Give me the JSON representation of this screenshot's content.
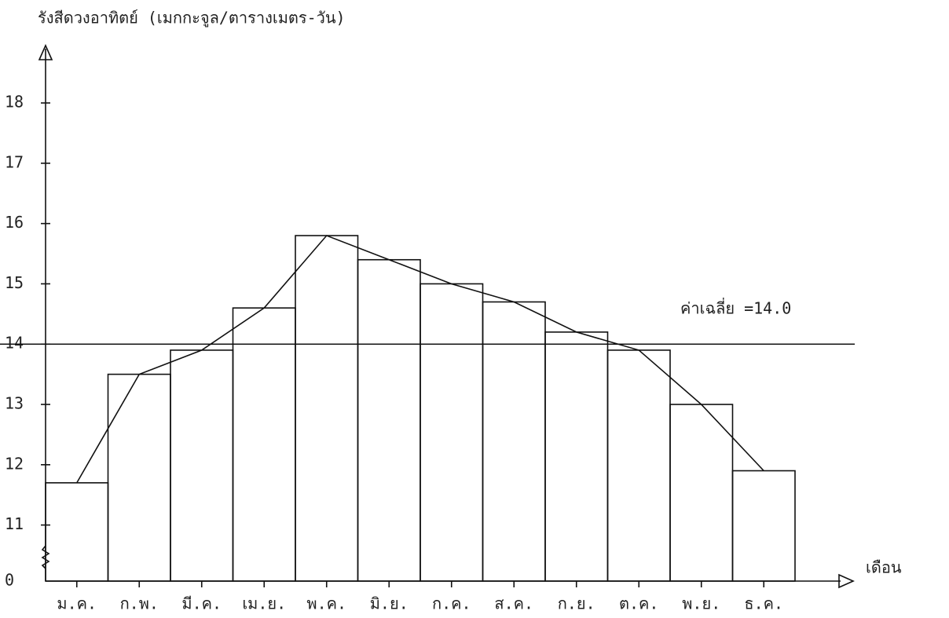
{
  "chart_data": {
    "type": "bar",
    "y_label": "รังสีดวงอาทิตย์ (เมกกะจูล/ตารางเมตร-วัน)",
    "x_label": "เดือน",
    "origin_label": "0",
    "categories": [
      "ม.ค.",
      "ก.พ.",
      "มี.ค.",
      "เม.ย.",
      "พ.ค.",
      "มิ.ย.",
      "ก.ค.",
      "ส.ค.",
      "ก.ย.",
      "ต.ค.",
      "พ.ย.",
      "ธ.ค."
    ],
    "values": [
      11.7,
      13.5,
      13.9,
      14.6,
      15.8,
      15.4,
      15.0,
      14.7,
      14.2,
      13.9,
      13.0,
      11.9
    ],
    "color": "#111111",
    "ylim": [
      10.07,
      18.9
    ],
    "yticks": [
      11,
      12,
      13,
      14,
      15,
      16,
      17,
      18
    ],
    "mean": 14,
    "mean_label": "ค่าเฉลี่ย =14.0"
  }
}
